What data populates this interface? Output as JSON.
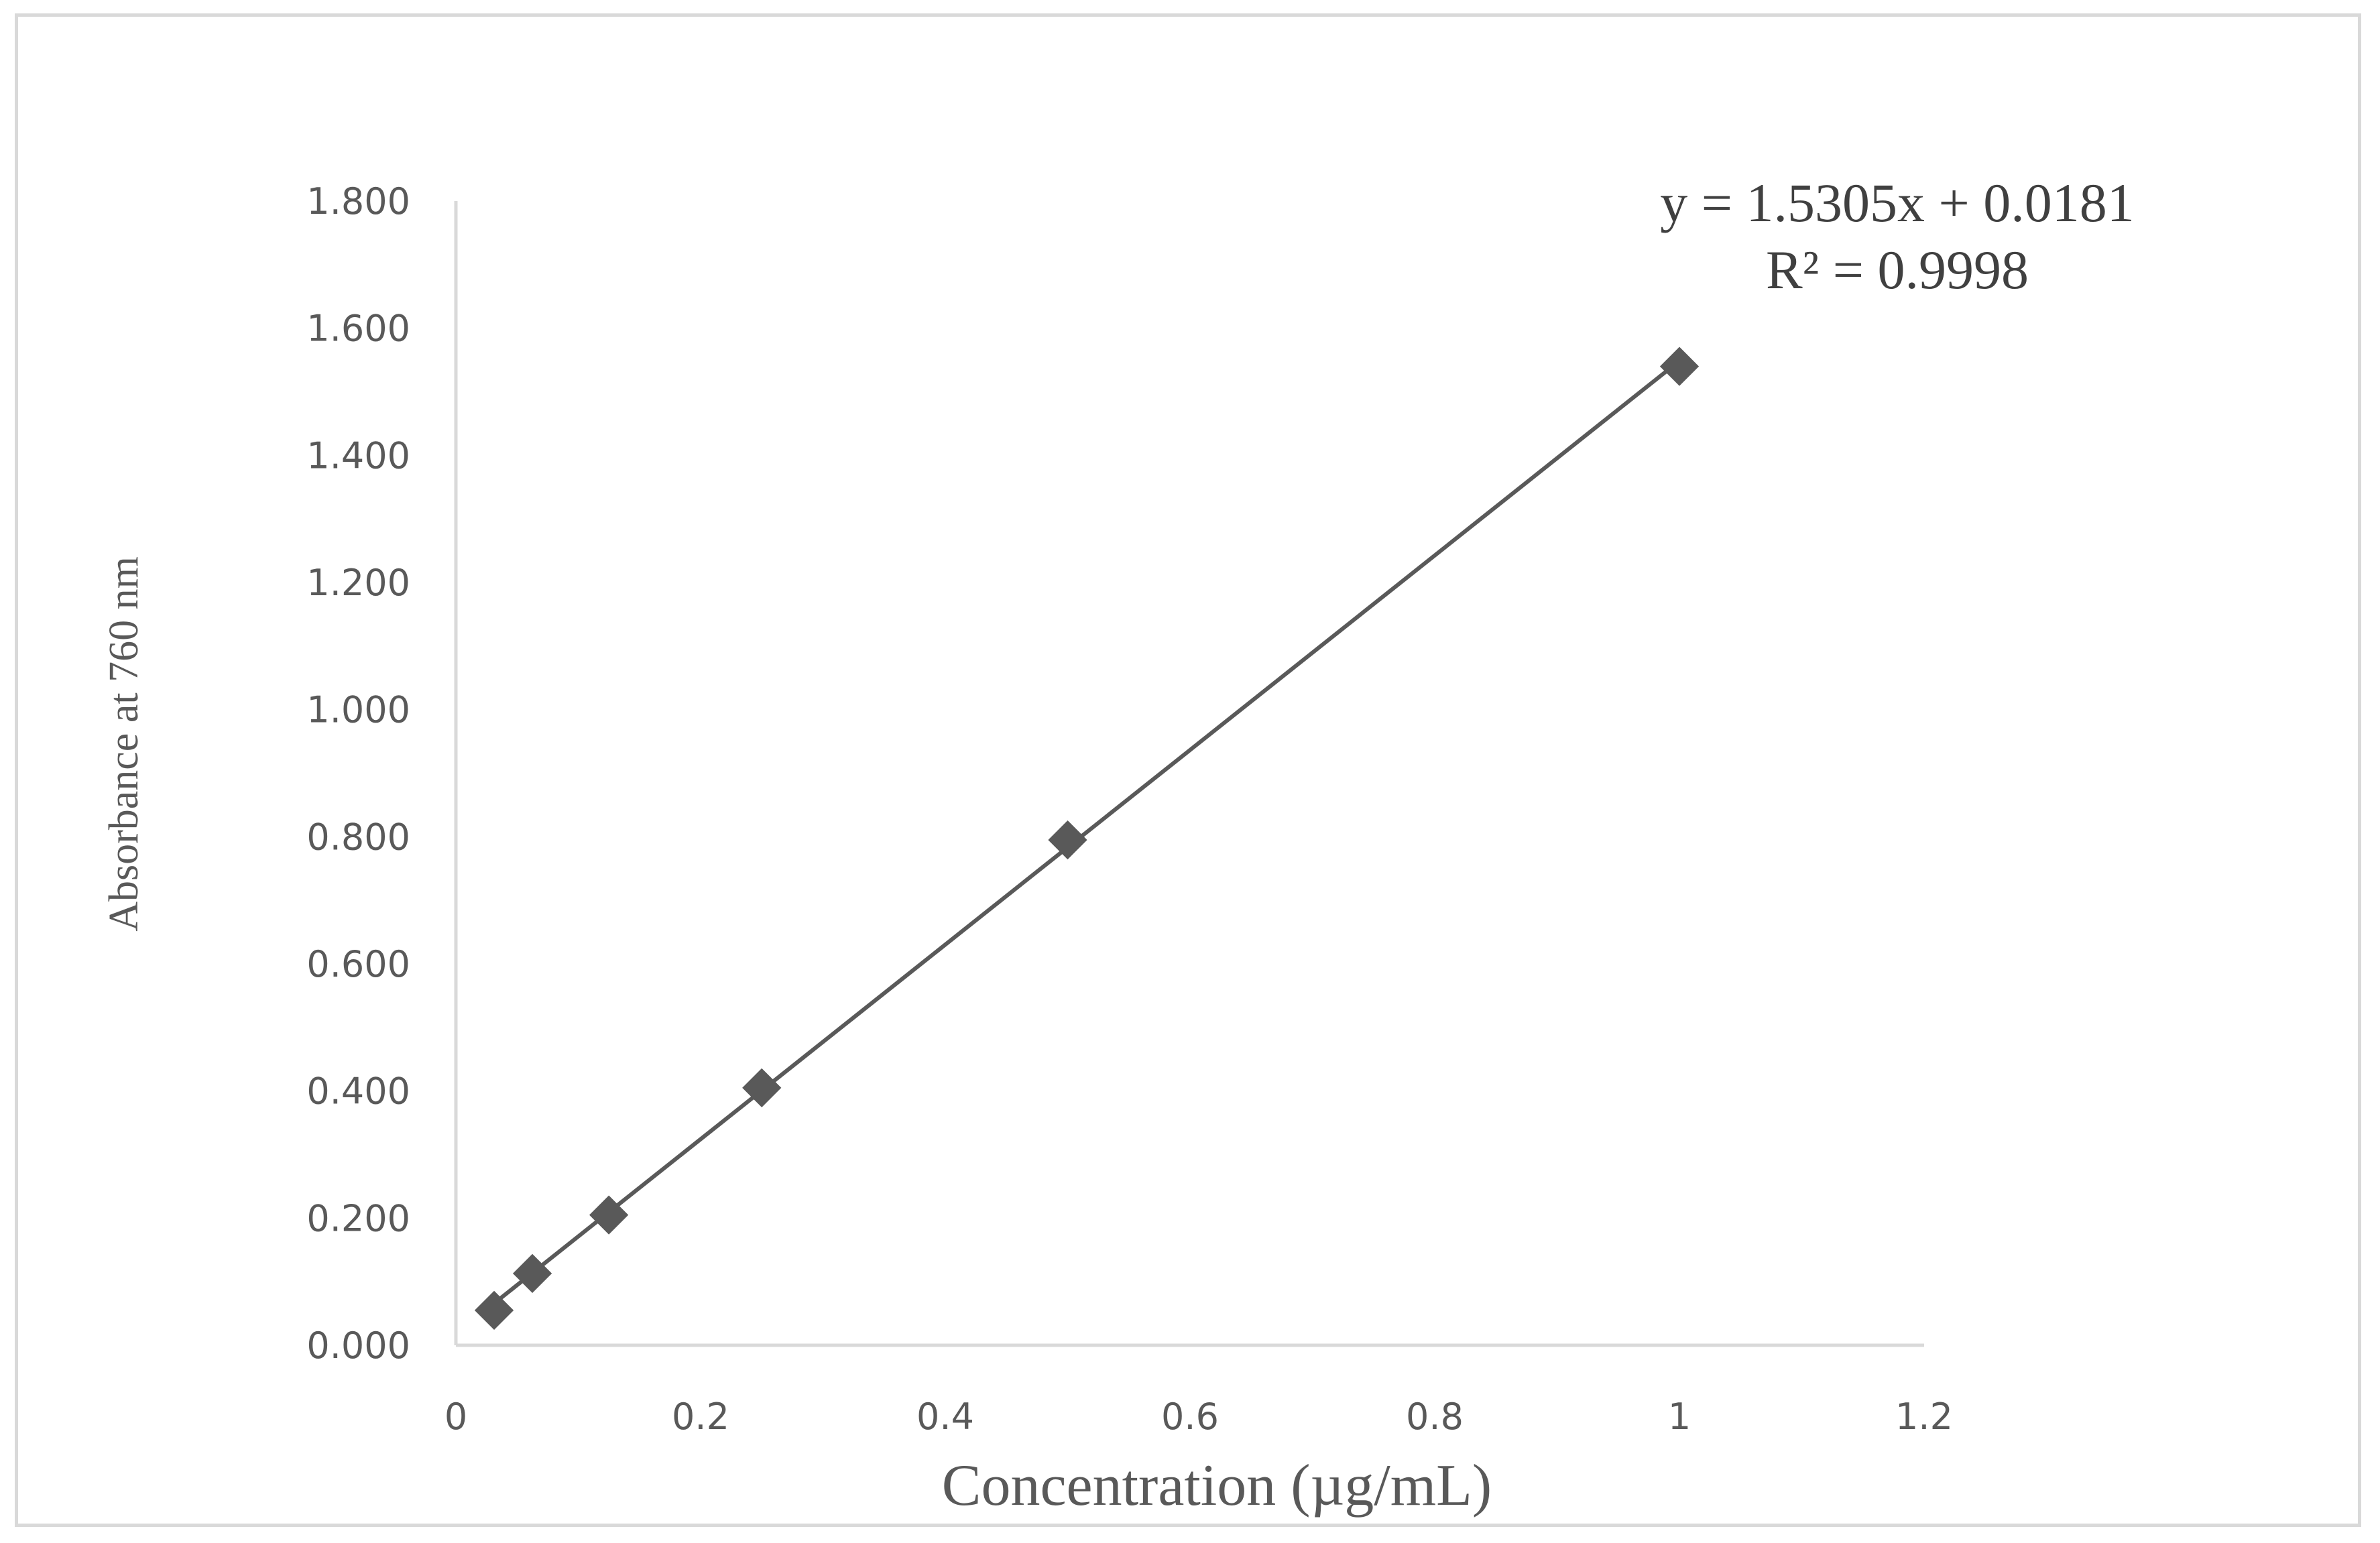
{
  "chart_data": {
    "type": "scatter",
    "xlabel": "Concentration (µg/mL)",
    "ylabel": "Absorbance at 760 nm",
    "xlim": [
      0,
      1.2
    ],
    "ylim": [
      0,
      1.8
    ],
    "x_ticks": [
      "0",
      "0.2",
      "0.4",
      "0.6",
      "0.8",
      "1",
      "1.2"
    ],
    "y_ticks": [
      "0.000",
      "0.200",
      "0.400",
      "0.600",
      "0.800",
      "1.000",
      "1.200",
      "1.400",
      "1.600",
      "1.800"
    ],
    "grid": false,
    "legend": "none",
    "marker": "diamond",
    "series": [
      {
        "x": [
          0.03125,
          0.0625,
          0.125,
          0.25,
          0.5,
          1.0
        ],
        "y": [
          0.055,
          0.113,
          0.205,
          0.405,
          0.795,
          1.54
        ]
      }
    ],
    "trendline": {
      "type": "linear",
      "slope": 1.5305,
      "intercept": 0.0181,
      "equation": "y = 1.5305x + 0.0181",
      "r_squared": "R² = 0.9998"
    },
    "colors": {
      "marker": "#595959",
      "line": "#595959",
      "axis": "#d9d9d9",
      "text": "#595959"
    }
  }
}
